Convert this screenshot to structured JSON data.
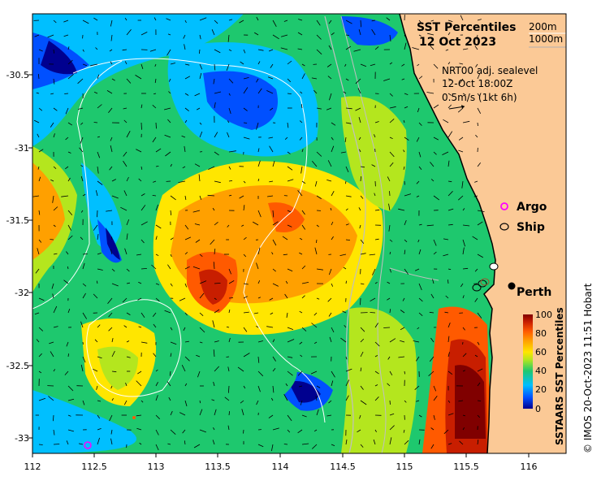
{
  "map": {
    "title_line1": "SST Percentiles",
    "title_line2": "12 Oct 2023",
    "bathymetry_legend": [
      "200m",
      "1000m"
    ],
    "current_info": [
      "NRT00 adj. sealevel",
      "12-Oct 18:00Z",
      "0.5m/s (1kt 6h)"
    ],
    "legend": {
      "argo_label": "Argo",
      "ship_label": "Ship",
      "argo_color": "#ff00ff"
    },
    "place_label": "Perth",
    "colorbar": {
      "label": "SSTAARS SST Percentiles",
      "ticks": [
        "100",
        "80",
        "60",
        "40",
        "20",
        "0"
      ],
      "colors": [
        "#00008f",
        "#0050ff",
        "#00bfff",
        "#1ec86e",
        "#b4e61e",
        "#ffe600",
        "#ffa000",
        "#ff5a00",
        "#c81e00",
        "#800000"
      ]
    },
    "x_ticks": [
      "112",
      "112.5",
      "113",
      "113.5",
      "114",
      "114.5",
      "115",
      "115.5",
      "116"
    ],
    "y_ticks": [
      "-30.5",
      "-31",
      "-31.5",
      "-32",
      "-32.5",
      "-33"
    ],
    "copyright": "© IMOS 20-Oct-2023 11:51 Hobart",
    "land_color": "#fbc996"
  }
}
